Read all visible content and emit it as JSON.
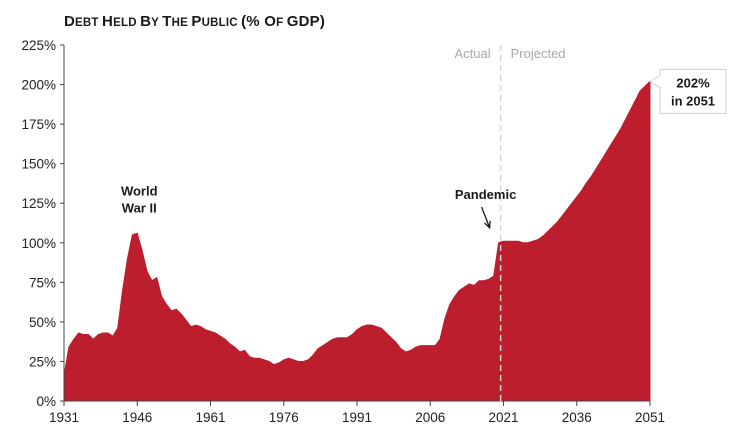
{
  "chart_data": {
    "type": "area",
    "title": "Debt Held by the Public (% of GDP)",
    "xlabel": "",
    "ylabel": "",
    "xlim": [
      1931,
      2051
    ],
    "ylim": [
      0,
      225
    ],
    "x_ticks": [
      "1931",
      "1946",
      "1961",
      "1976",
      "1991",
      "2006",
      "2021",
      "2036",
      "2051"
    ],
    "y_ticks": [
      "0%",
      "25%",
      "50%",
      "75%",
      "100%",
      "125%",
      "150%",
      "175%",
      "200%",
      "225%"
    ],
    "grid": false,
    "color": "#bc1e2d",
    "segments": [
      {
        "label": "Actual",
        "x_end": 2020
      },
      {
        "label": "Projected",
        "x_start": 2020
      }
    ],
    "annotations": [
      {
        "text_lines": [
          "World",
          "War II"
        ],
        "x": 1946,
        "y": 106
      },
      {
        "text_lines": [
          "Pandemic"
        ],
        "x": 2020,
        "y": 100
      },
      {
        "text_lines": [
          "202%",
          "in 2051"
        ],
        "x": 2051,
        "y": 202
      }
    ],
    "x": [
      1931,
      1932,
      1933,
      1934,
      1935,
      1936,
      1937,
      1938,
      1939,
      1940,
      1941,
      1942,
      1943,
      1944,
      1945,
      1946,
      1947,
      1948,
      1949,
      1950,
      1951,
      1952,
      1953,
      1954,
      1955,
      1956,
      1957,
      1958,
      1959,
      1960,
      1961,
      1962,
      1963,
      1964,
      1965,
      1966,
      1967,
      1968,
      1969,
      1970,
      1971,
      1972,
      1973,
      1974,
      1975,
      1976,
      1977,
      1978,
      1979,
      1980,
      1981,
      1982,
      1983,
      1984,
      1985,
      1986,
      1987,
      1988,
      1989,
      1990,
      1991,
      1992,
      1993,
      1994,
      1995,
      1996,
      1997,
      1998,
      1999,
      2000,
      2001,
      2002,
      2003,
      2004,
      2005,
      2006,
      2007,
      2008,
      2009,
      2010,
      2011,
      2012,
      2013,
      2014,
      2015,
      2016,
      2017,
      2018,
      2019,
      2020,
      2021,
      2022,
      2023,
      2024,
      2025,
      2026,
      2027,
      2028,
      2029,
      2030,
      2031,
      2032,
      2033,
      2034,
      2035,
      2036,
      2037,
      2038,
      2039,
      2040,
      2041,
      2042,
      2043,
      2044,
      2045,
      2046,
      2047,
      2048,
      2049,
      2050,
      2051
    ],
    "values": [
      16,
      34,
      39,
      43,
      42,
      42,
      39,
      42,
      43,
      43,
      41,
      46,
      70,
      90,
      105,
      106,
      95,
      82,
      76,
      78,
      66,
      61,
      57,
      58,
      55,
      51,
      47,
      48,
      47,
      45,
      44,
      43,
      41,
      39,
      36,
      34,
      31,
      32,
      28,
      27,
      27,
      26,
      25,
      23,
      24,
      26,
      27,
      26,
      25,
      25,
      26,
      29,
      33,
      35,
      37,
      39,
      40,
      40,
      40,
      42,
      45,
      47,
      48,
      48,
      47,
      46,
      43,
      40,
      37,
      33,
      31,
      32,
      34,
      35,
      35,
      35,
      35,
      39,
      52,
      61,
      66,
      70,
      72,
      74,
      73,
      76,
      76,
      77,
      79,
      100,
      101,
      101,
      101,
      101,
      100,
      100,
      101,
      102,
      104,
      107,
      110,
      113,
      117,
      121,
      125,
      129,
      133,
      138,
      142,
      147,
      152,
      157,
      162,
      167,
      172,
      178,
      184,
      190,
      196,
      199,
      202
    ]
  }
}
